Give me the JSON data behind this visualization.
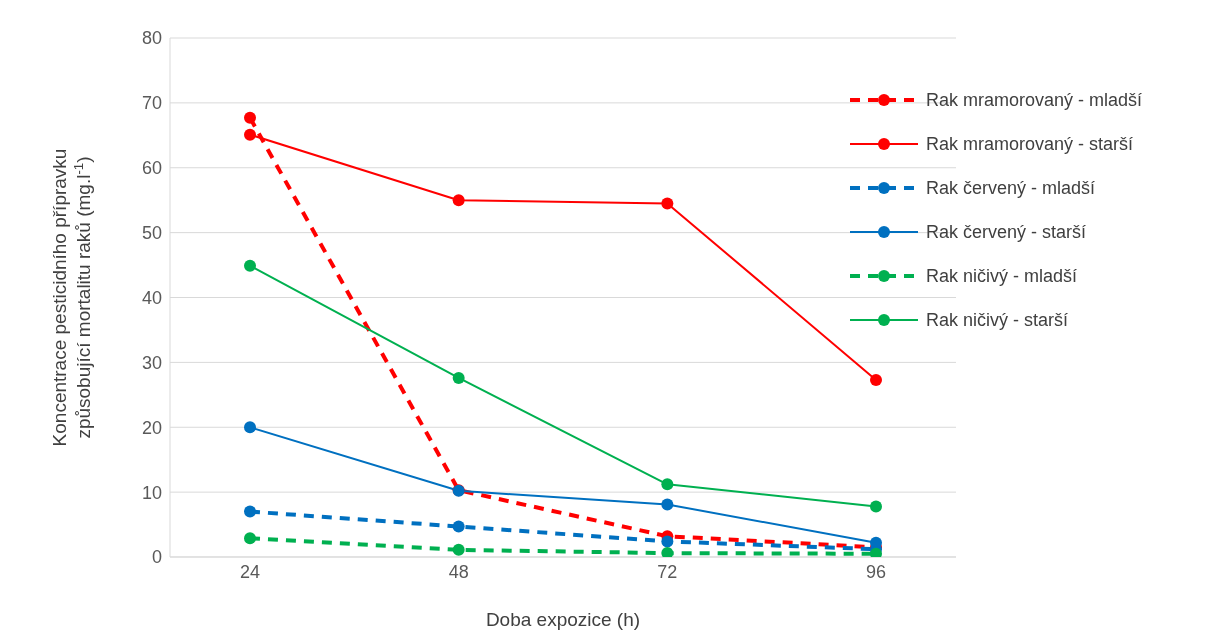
{
  "chart_data": {
    "type": "line",
    "xlabel": "Doba expozice (h)",
    "ylabel": "Koncentrace pesticidního přípravku způsobující mortalitu raků  (mg.l$^{-1}$)",
    "categories": [
      "24",
      "48",
      "72",
      "96"
    ],
    "ylim": [
      0,
      80
    ],
    "yticks": [
      0,
      10,
      20,
      30,
      40,
      50,
      60,
      70,
      80
    ],
    "grid": "y",
    "legend": "right",
    "marker": "circle",
    "series": [
      {
        "name": "Rak mramorovaný - mladší",
        "color": "#ff0000",
        "line_style": "dashed",
        "values": [
          67.7,
          10.3,
          3.2,
          1.5
        ]
      },
      {
        "name": "Rak mramorovaný - starší",
        "color": "#ff0000",
        "line_style": "solid",
        "values": [
          65.1,
          55,
          54.5,
          27.3
        ]
      },
      {
        "name": "Rak červený - mladší",
        "color": "#0070c0",
        "line_style": "dashed",
        "values": [
          7,
          4.7,
          2.4,
          1.2
        ]
      },
      {
        "name": "Rak červený - starší",
        "color": "#0070c0",
        "line_style": "solid",
        "values": [
          20,
          10.2,
          8.1,
          2.2
        ]
      },
      {
        "name": "Rak ničivý - mladší",
        "color": "#00b050",
        "line_style": "dashed",
        "values": [
          2.9,
          1.1,
          0.6,
          0.5
        ]
      },
      {
        "name": "Rak ničivý - starší",
        "color": "#00b050",
        "line_style": "solid",
        "values": [
          44.9,
          27.6,
          11.2,
          7.8
        ]
      }
    ]
  }
}
